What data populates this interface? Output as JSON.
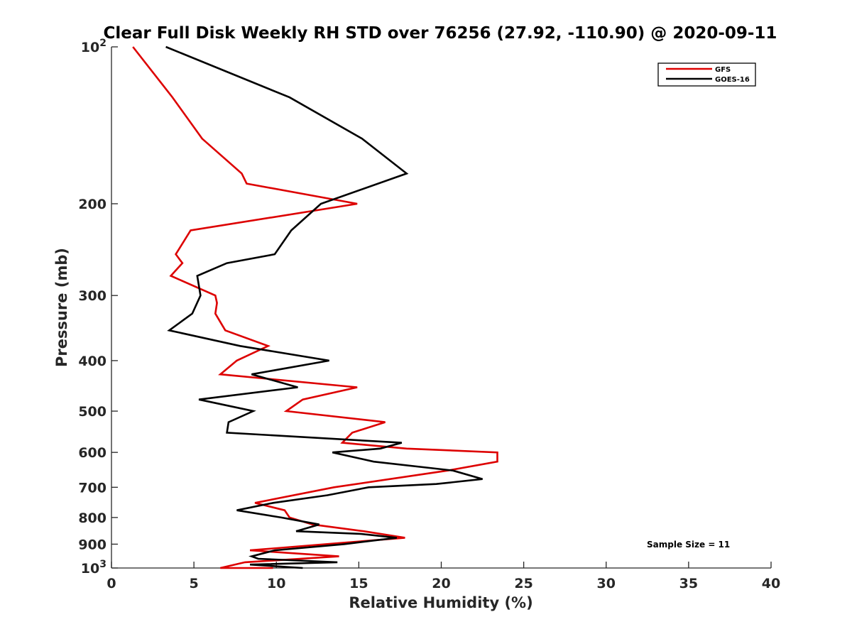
{
  "chart_data": {
    "type": "line",
    "title": "Clear Full Disk Weekly RH STD over 76256 (27.92, -110.90) @ 2020-09-11",
    "xlabel": "Relative Humidity (%)",
    "ylabel": "Pressure (mb)",
    "xlim": [
      0,
      40
    ],
    "ylim": [
      100,
      1000
    ],
    "yscale": "log",
    "yreversed": true,
    "xticks": [
      0,
      5,
      10,
      15,
      20,
      25,
      30,
      35,
      40
    ],
    "xtick_labels": [
      "0",
      "5",
      "10",
      "15",
      "20",
      "25",
      "30",
      "35",
      "40"
    ],
    "yticks": [
      100,
      200,
      300,
      400,
      500,
      600,
      700,
      800,
      900,
      1000
    ],
    "ytick_labels": [
      {
        "base": "10",
        "exp": "2"
      },
      {
        "base": "200",
        "exp": ""
      },
      {
        "base": "300",
        "exp": ""
      },
      {
        "base": "400",
        "exp": ""
      },
      {
        "base": "500",
        "exp": ""
      },
      {
        "base": "600",
        "exp": ""
      },
      {
        "base": "700",
        "exp": ""
      },
      {
        "base": "800",
        "exp": ""
      },
      {
        "base": "900",
        "exp": ""
      },
      {
        "base": "10",
        "exp": "3"
      }
    ],
    "legend_position": "top-right",
    "series": [
      {
        "name": "GFS",
        "color": "#dd0000",
        "points": [
          [
            1.3,
            100
          ],
          [
            3.7,
            125
          ],
          [
            5.5,
            150
          ],
          [
            7.9,
            175
          ],
          [
            8.2,
            183
          ],
          [
            14.9,
            200
          ],
          [
            4.8,
            225
          ],
          [
            3.9,
            250
          ],
          [
            4.3,
            260
          ],
          [
            3.6,
            275
          ],
          [
            6.3,
            300
          ],
          [
            6.4,
            310
          ],
          [
            6.3,
            325
          ],
          [
            6.9,
            350
          ],
          [
            9.5,
            375
          ],
          [
            7.6,
            400
          ],
          [
            6.6,
            425
          ],
          [
            14.9,
            450
          ],
          [
            11.6,
            475
          ],
          [
            10.6,
            500
          ],
          [
            16.6,
            525
          ],
          [
            14.6,
            550
          ],
          [
            14.0,
            575
          ],
          [
            17.9,
            590
          ],
          [
            23.4,
            600
          ],
          [
            23.4,
            625
          ],
          [
            20.4,
            650
          ],
          [
            13.5,
            700
          ],
          [
            8.7,
            750
          ],
          [
            10.5,
            775
          ],
          [
            10.8,
            800
          ],
          [
            12.2,
            825
          ],
          [
            15.3,
            850
          ],
          [
            17.8,
            875
          ],
          [
            8.4,
            925
          ],
          [
            13.8,
            950
          ],
          [
            8.1,
            975
          ],
          [
            6.6,
            1000
          ],
          [
            9.8,
            1000
          ]
        ]
      },
      {
        "name": "GOES-16",
        "color": "#000000",
        "points": [
          [
            3.3,
            100
          ],
          [
            10.8,
            125
          ],
          [
            15.2,
            150
          ],
          [
            17.9,
            175
          ],
          [
            12.7,
            200
          ],
          [
            10.9,
            225
          ],
          [
            9.9,
            250
          ],
          [
            7.0,
            260
          ],
          [
            5.2,
            275
          ],
          [
            5.4,
            300
          ],
          [
            4.9,
            325
          ],
          [
            3.5,
            350
          ],
          [
            7.8,
            375
          ],
          [
            13.2,
            400
          ],
          [
            8.5,
            425
          ],
          [
            11.3,
            450
          ],
          [
            5.3,
            475
          ],
          [
            8.6,
            500
          ],
          [
            7.1,
            525
          ],
          [
            7.0,
            550
          ],
          [
            17.6,
            575
          ],
          [
            16.3,
            590
          ],
          [
            13.4,
            600
          ],
          [
            15.9,
            625
          ],
          [
            20.7,
            650
          ],
          [
            22.5,
            675
          ],
          [
            19.7,
            690
          ],
          [
            15.6,
            700
          ],
          [
            13.1,
            725
          ],
          [
            9.8,
            750
          ],
          [
            7.6,
            775
          ],
          [
            10.3,
            800
          ],
          [
            12.6,
            825
          ],
          [
            11.2,
            850
          ],
          [
            15.1,
            860
          ],
          [
            17.3,
            875
          ],
          [
            14.1,
            900
          ],
          [
            9.9,
            925
          ],
          [
            8.5,
            950
          ],
          [
            8.9,
            960
          ],
          [
            13.7,
            975
          ],
          [
            8.4,
            985
          ],
          [
            11.6,
            1000
          ]
        ]
      }
    ],
    "annotations": [
      "Sample Size = 11"
    ]
  }
}
